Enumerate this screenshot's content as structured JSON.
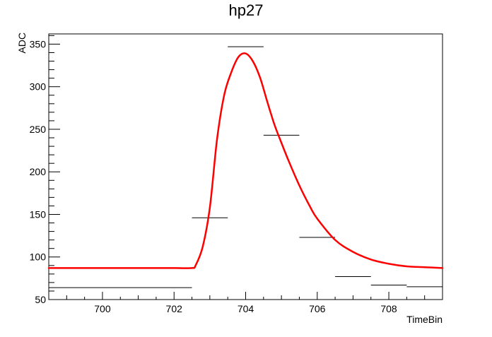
{
  "chart_data": {
    "type": "line",
    "title": "hp27",
    "xlabel": "TimeBin",
    "ylabel": "ADC",
    "xlim": [
      698.5,
      709.5
    ],
    "ylim": [
      50,
      362
    ],
    "x_ticks": [
      700,
      702,
      704,
      706,
      708
    ],
    "y_ticks": [
      50,
      100,
      150,
      200,
      250,
      300,
      350
    ],
    "grid": false,
    "legend": "none",
    "series": [
      {
        "kind": "histogram-steps",
        "color": "#000000",
        "bins": [
          {
            "x0": 698.5,
            "x1": 702.5,
            "y": 64
          },
          {
            "x0": 702.5,
            "x1": 703.5,
            "y": 146
          },
          {
            "x0": 703.5,
            "x1": 704.5,
            "y": 347
          },
          {
            "x0": 704.5,
            "x1": 705.5,
            "y": 243
          },
          {
            "x0": 705.5,
            "x1": 706.5,
            "y": 123
          },
          {
            "x0": 706.5,
            "x1": 707.5,
            "y": 77
          },
          {
            "x0": 707.5,
            "x1": 708.5,
            "y": 67
          },
          {
            "x0": 708.5,
            "x1": 709.5,
            "y": 65
          }
        ]
      },
      {
        "kind": "fit-curve",
        "color": "#ff0000",
        "x": [
          698.5,
          700.0,
          702.0,
          702.5,
          702.6,
          702.8,
          703.0,
          703.2,
          703.4,
          703.6,
          703.8,
          704.0,
          704.2,
          704.4,
          704.6,
          704.8,
          705.0,
          705.2,
          705.5,
          705.8,
          706.0,
          706.5,
          707.0,
          707.5,
          708.0,
          708.5,
          709.0,
          709.5
        ],
        "y": [
          87,
          87,
          87,
          87,
          90,
          112,
          158,
          238,
          290,
          317,
          335,
          339,
          330,
          311,
          283,
          256,
          234,
          213,
          184,
          159,
          145,
          120,
          106,
          97,
          92,
          89,
          88,
          87
        ]
      }
    ]
  }
}
